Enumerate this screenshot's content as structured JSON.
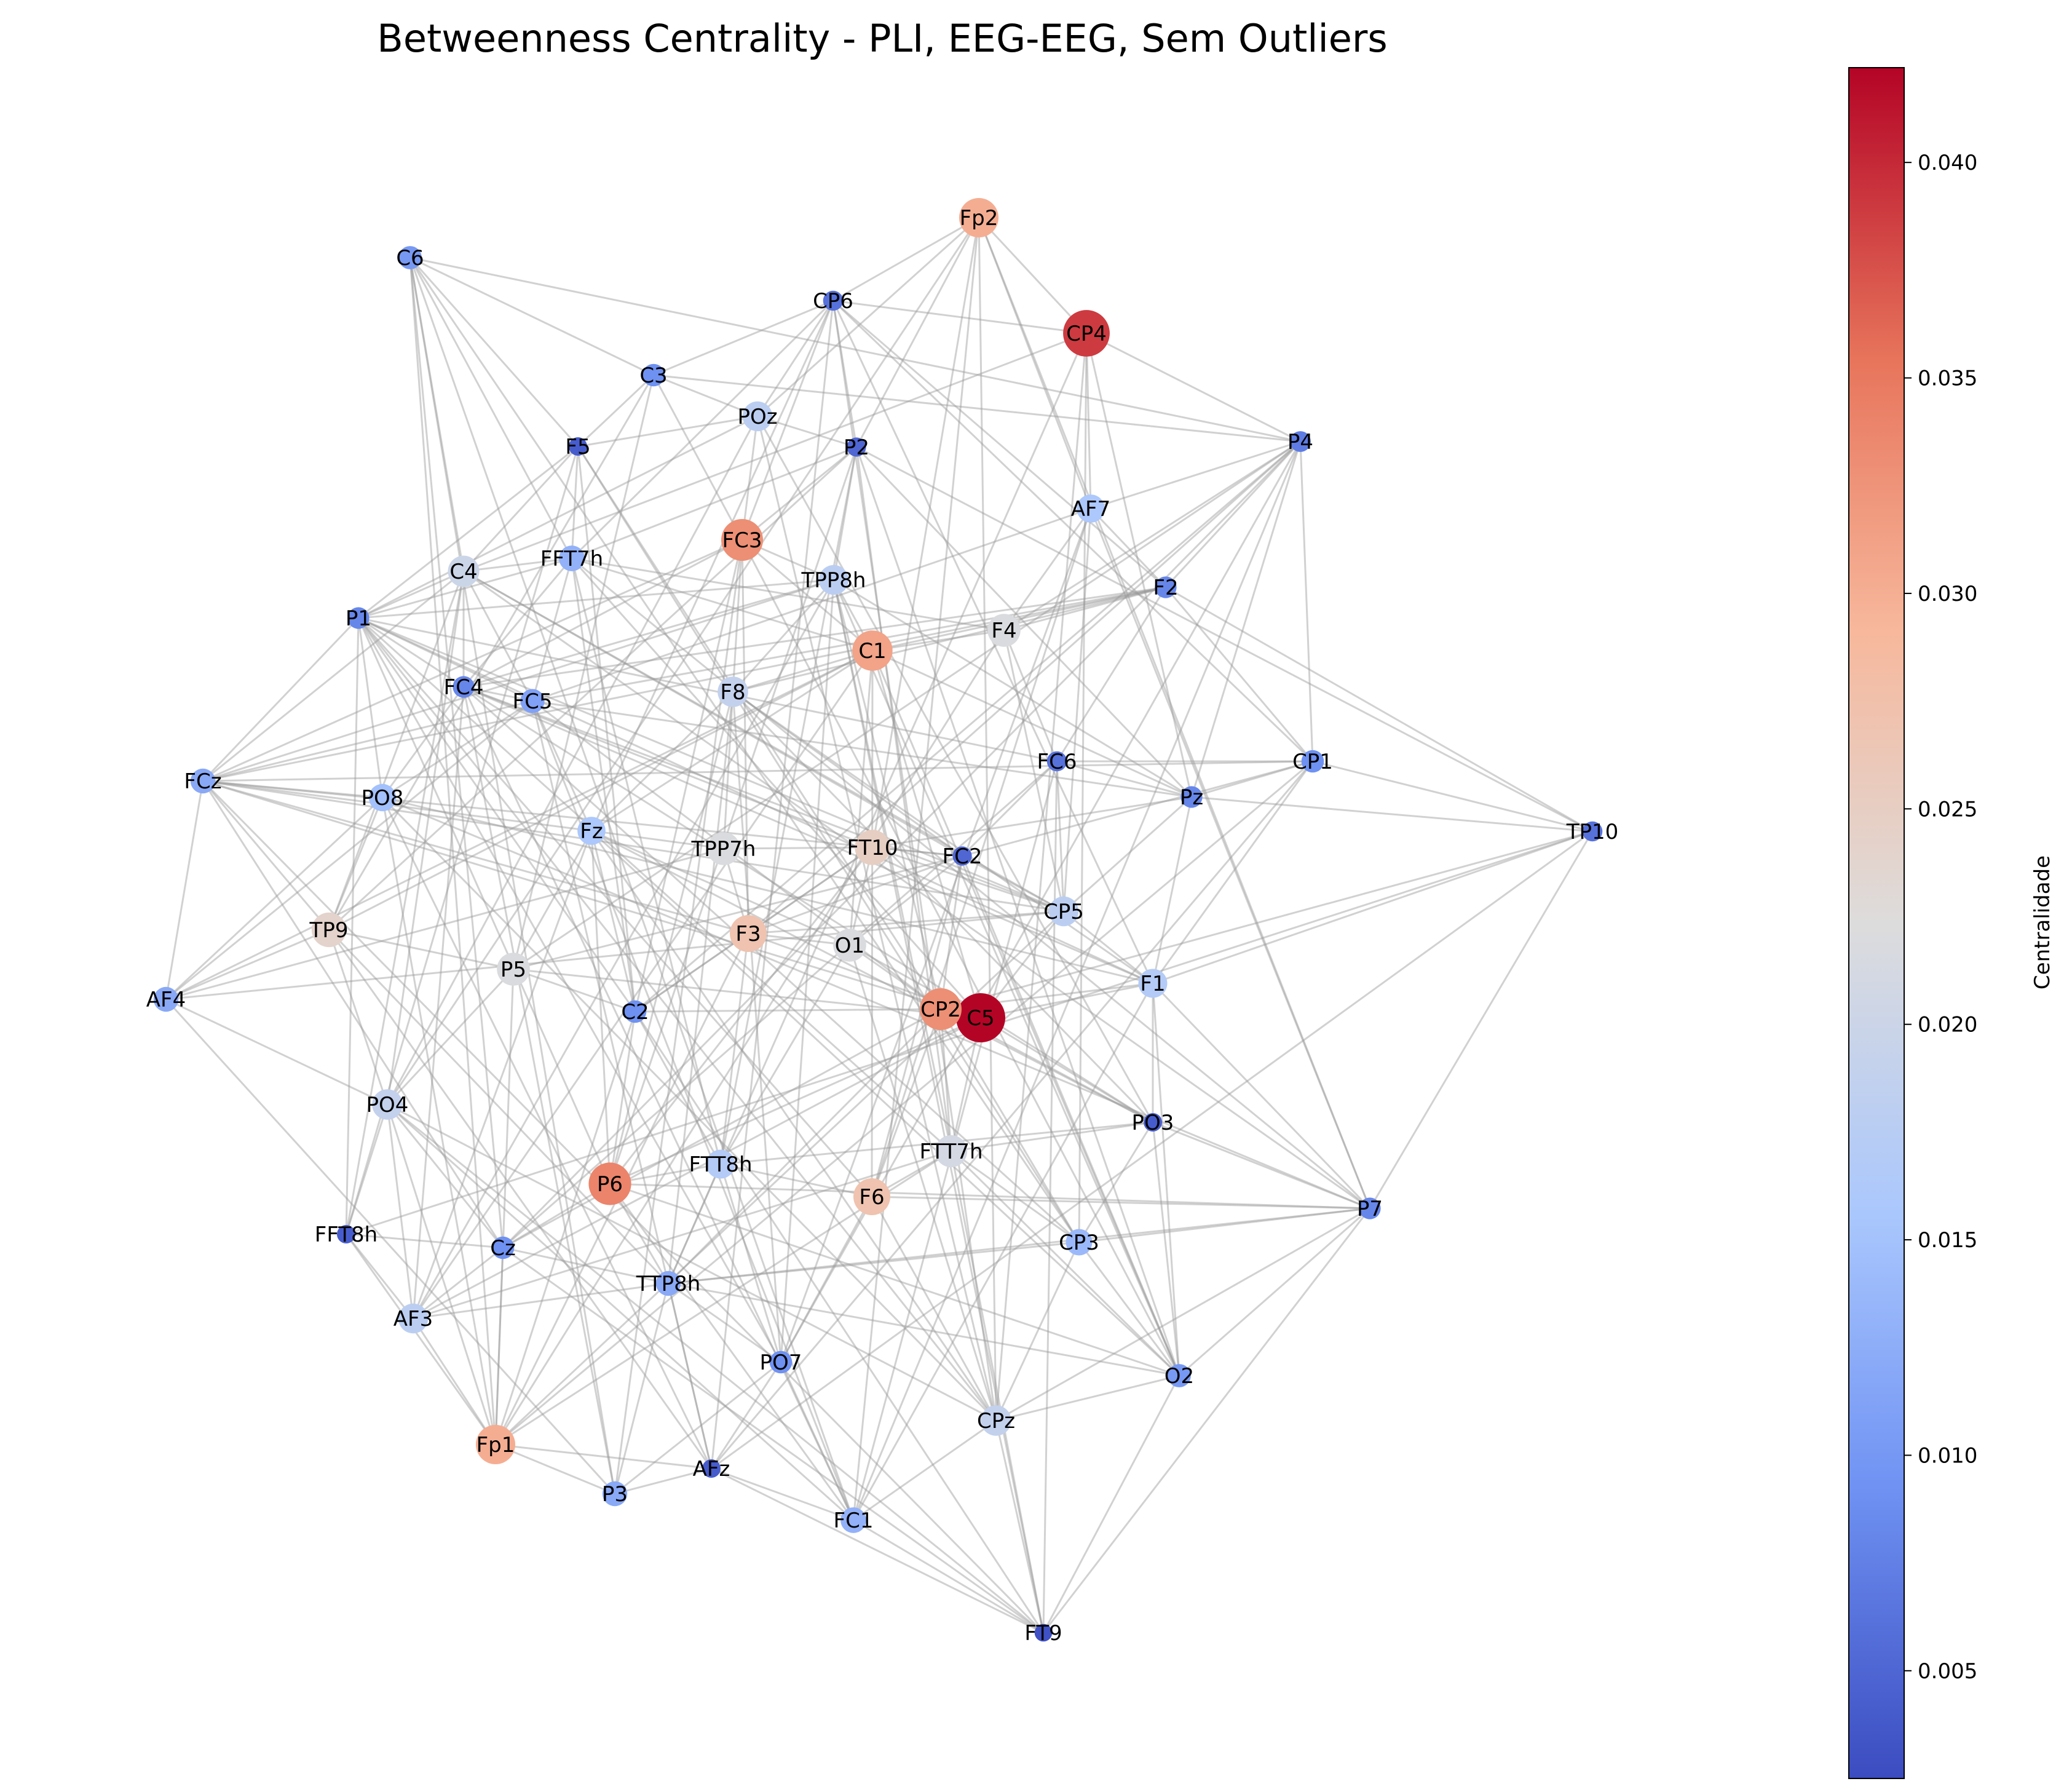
{
  "title": "Betweenness Centrality - PLI, EEG-EEG, Sem Outliers",
  "colorbar": {
    "label": "Centralidade",
    "min": 0.0025,
    "max": 0.0422,
    "ticks": [
      "0.005",
      "0.010",
      "0.015",
      "0.020",
      "0.025",
      "0.030",
      "0.035",
      "0.040"
    ],
    "colormap": "coolwarm",
    "colors": [
      "#3b4cc0",
      "#6f92f3",
      "#aac7fd",
      "#dddcdc",
      "#f7b89c",
      "#e7745b",
      "#b40426"
    ]
  },
  "nodes": [
    {
      "name": "Fp2",
      "value": 0.03
    },
    {
      "name": "C6",
      "value": 0.01
    },
    {
      "name": "CP6",
      "value": 0.006
    },
    {
      "name": "CP4",
      "value": 0.039
    },
    {
      "name": "C3",
      "value": 0.009
    },
    {
      "name": "POz",
      "value": 0.018
    },
    {
      "name": "P2",
      "value": 0.005
    },
    {
      "name": "P4",
      "value": 0.007
    },
    {
      "name": "F5",
      "value": 0.004
    },
    {
      "name": "AF7",
      "value": 0.016
    },
    {
      "name": "FFT7h",
      "value": 0.013
    },
    {
      "name": "FC3",
      "value": 0.033
    },
    {
      "name": "C4",
      "value": 0.02
    },
    {
      "name": "TPP8h",
      "value": 0.018
    },
    {
      "name": "F2",
      "value": 0.008
    },
    {
      "name": "P1",
      "value": 0.008
    },
    {
      "name": "C1",
      "value": 0.031
    },
    {
      "name": "F4",
      "value": 0.022
    },
    {
      "name": "FC4",
      "value": 0.008
    },
    {
      "name": "FC5",
      "value": 0.011
    },
    {
      "name": "F8",
      "value": 0.019
    },
    {
      "name": "FC6",
      "value": 0.006
    },
    {
      "name": "CP1",
      "value": 0.009
    },
    {
      "name": "FCz",
      "value": 0.012
    },
    {
      "name": "PO8",
      "value": 0.015
    },
    {
      "name": "Pz",
      "value": 0.008
    },
    {
      "name": "TP10",
      "value": 0.006
    },
    {
      "name": "Fz",
      "value": 0.016
    },
    {
      "name": "TPP7h",
      "value": 0.022
    },
    {
      "name": "FT10",
      "value": 0.025
    },
    {
      "name": "FC2",
      "value": 0.005
    },
    {
      "name": "CP5",
      "value": 0.018
    },
    {
      "name": "TP9",
      "value": 0.024
    },
    {
      "name": "F3",
      "value": 0.027
    },
    {
      "name": "O1",
      "value": 0.022
    },
    {
      "name": "P5",
      "value": 0.022
    },
    {
      "name": "F1",
      "value": 0.017
    },
    {
      "name": "AF4",
      "value": 0.012
    },
    {
      "name": "C5",
      "value": 0.0422
    },
    {
      "name": "C2",
      "value": 0.009
    },
    {
      "name": "CP2",
      "value": 0.033
    },
    {
      "name": "PO4",
      "value": 0.019
    },
    {
      "name": "PO3",
      "value": 0.004
    },
    {
      "name": "FTT7h",
      "value": 0.021
    },
    {
      "name": "FTT8h",
      "value": 0.017
    },
    {
      "name": "P6",
      "value": 0.034
    },
    {
      "name": "F6",
      "value": 0.027
    },
    {
      "name": "P7",
      "value": 0.008
    },
    {
      "name": "FFT8h",
      "value": 0.004
    },
    {
      "name": "Cz",
      "value": 0.009
    },
    {
      "name": "CP3",
      "value": 0.014
    },
    {
      "name": "TTP8h",
      "value": 0.012
    },
    {
      "name": "AF3",
      "value": 0.018
    },
    {
      "name": "PO7",
      "value": 0.009
    },
    {
      "name": "O2",
      "value": 0.01
    },
    {
      "name": "CPz",
      "value": 0.019
    },
    {
      "name": "Fp1",
      "value": 0.03
    },
    {
      "name": "AFz",
      "value": 0.004
    },
    {
      "name": "P3",
      "value": 0.012
    },
    {
      "name": "FC1",
      "value": 0.013
    },
    {
      "name": "FT9",
      "value": 0.003
    }
  ]
}
